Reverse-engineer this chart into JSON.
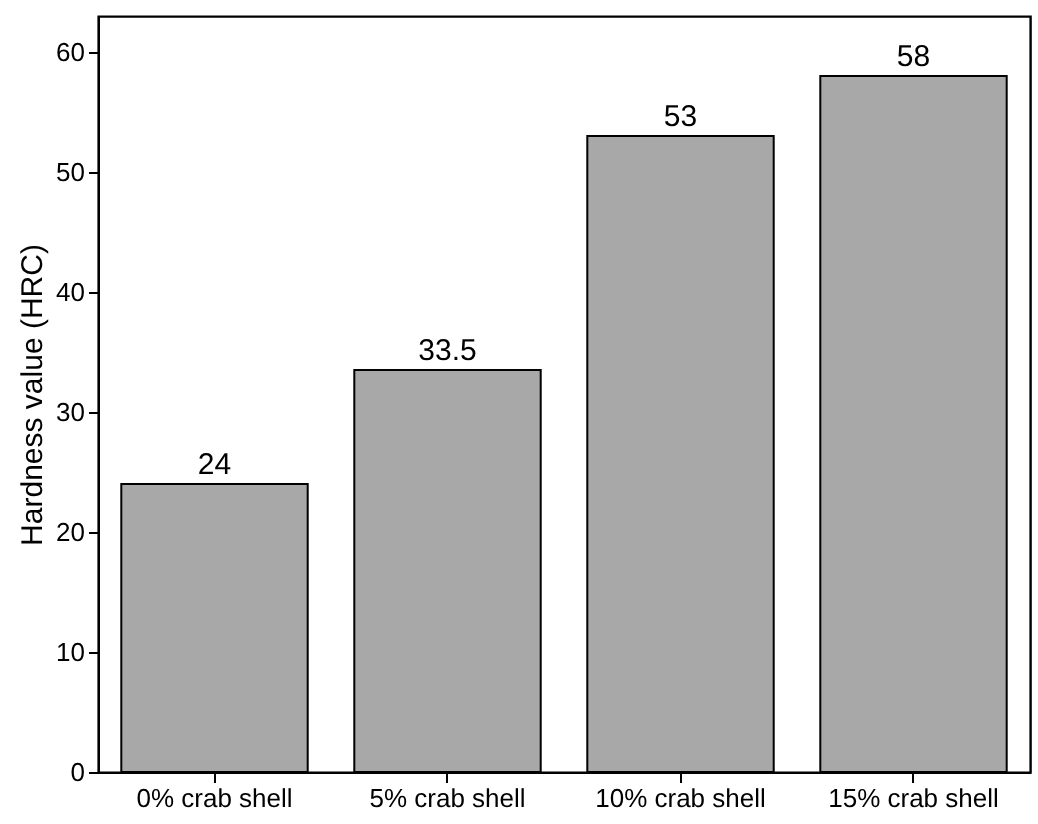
{
  "chart_data": {
    "type": "bar",
    "ylabel": "Hardness value (HRC)",
    "categories": [
      "0% crab shell",
      "5% crab shell",
      "10% crab shell",
      "15% crab shell"
    ],
    "values": [
      24,
      33.5,
      53,
      58
    ],
    "color": "#a8a8a8",
    "ylim": [
      0,
      63
    ],
    "yticks": [
      0,
      10,
      20,
      30,
      40,
      50,
      60
    ],
    "data_labels": true,
    "grid": false
  }
}
